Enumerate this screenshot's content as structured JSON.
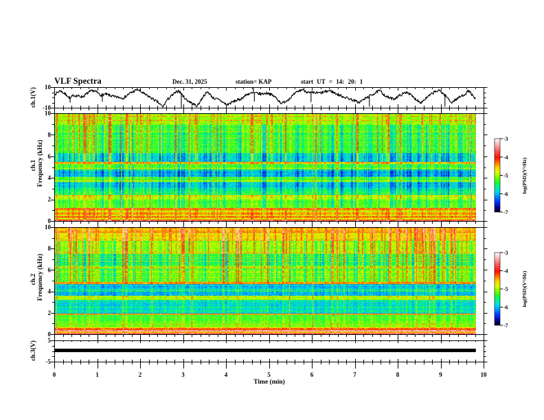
{
  "header": {
    "title": "VLF Spectra",
    "date": "Dec. 31, 2025",
    "station": "station= KAP",
    "start_time": "start UT = 14: 20: 1"
  },
  "x_axis": {
    "label": "Time (min)",
    "range": [
      0,
      10
    ],
    "ticks": [
      "0",
      "1",
      "2",
      "3",
      "4",
      "5",
      "6",
      "7",
      "8",
      "9",
      "10"
    ]
  },
  "colormap": [
    {
      "v": -7.0,
      "color": "#000014"
    },
    {
      "v": -6.75,
      "color": "#00008c"
    },
    {
      "v": -6.45,
      "color": "#0030ff"
    },
    {
      "v": -6.15,
      "color": "#0090ff"
    },
    {
      "v": -5.9,
      "color": "#00d8f0"
    },
    {
      "v": -5.65,
      "color": "#00f0a0"
    },
    {
      "v": -5.4,
      "color": "#10ff30"
    },
    {
      "v": -5.15,
      "color": "#70ff00"
    },
    {
      "v": -4.85,
      "color": "#d8ff00"
    },
    {
      "v": -4.6,
      "color": "#ffd800"
    },
    {
      "v": -4.35,
      "color": "#ff8000"
    },
    {
      "v": -4.05,
      "color": "#ff1000"
    },
    {
      "v": -3.7,
      "color": "#ff5050"
    },
    {
      "v": -3.35,
      "color": "#ffaaaa"
    },
    {
      "v": -3.0,
      "color": "#ffffff"
    }
  ],
  "chart_data": [
    {
      "type": "line",
      "ylabel": "ch.1(V)",
      "xlabel": "Time (min)",
      "ylim": [
        -10,
        10
      ],
      "yticks": [
        "10",
        "-10"
      ],
      "color": "#000000",
      "x": [
        0.02,
        0.14,
        0.29,
        0.37,
        0.45,
        0.66,
        0.82,
        0.93,
        1.09,
        1.18,
        1.41,
        1.62,
        1.73,
        1.94,
        2.1,
        2.26,
        2.42,
        2.53,
        2.62,
        2.78,
        2.9,
        3.06,
        3.22,
        3.33,
        3.49,
        3.58,
        3.7,
        3.86,
        4.02,
        4.18,
        4.34,
        4.5,
        4.66,
        4.82,
        4.98,
        5.14,
        5.3,
        5.46,
        5.66,
        5.78,
        5.94,
        6.21,
        6.42,
        6.58,
        6.74,
        6.9,
        7.1,
        7.22,
        7.38,
        7.58,
        7.74,
        7.9,
        8.06,
        8.22,
        8.38,
        8.54,
        8.7,
        8.86,
        8.98,
        9.14,
        9.25,
        9.41,
        9.57,
        9.66,
        9.78,
        9.81
      ],
      "y": [
        3.3,
        6.7,
        2.2,
        -1.0,
        2.2,
        0.6,
        5.5,
        6.7,
        2.2,
        3.3,
        0.6,
        -0.5,
        3.3,
        7.8,
        3.3,
        -0.5,
        -4.9,
        -9.4,
        -2.7,
        3.3,
        6.7,
        -1.6,
        -6.0,
        -8.3,
        2.2,
        5.5,
        -0.5,
        -2.7,
        -7.2,
        -3.8,
        -1.6,
        3.3,
        4.4,
        3.3,
        4.4,
        0.6,
        -6.0,
        -1.6,
        5.5,
        7.8,
        4.4,
        4.4,
        6.7,
        3.3,
        0.6,
        -1.6,
        -4.9,
        -1.6,
        2.2,
        6.7,
        0.6,
        -1.6,
        2.2,
        5.5,
        -0.5,
        -4.9,
        0.6,
        5.5,
        6.7,
        0.6,
        -4.9,
        -0.5,
        3.3,
        6.7,
        -0.5,
        -1.6
      ],
      "spikes": [
        {
          "t": 0.37,
          "v": -5
        },
        {
          "t": 1.12,
          "v": -4
        },
        {
          "t": 2.96,
          "v": -10
        },
        {
          "t": 4.64,
          "v": 10
        },
        {
          "t": 4.66,
          "v": -4
        },
        {
          "t": 5.98,
          "v": -4.5
        },
        {
          "t": 7.34,
          "v": -9
        },
        {
          "t": 9.1,
          "v": -9
        }
      ]
    },
    {
      "type": "heatmap",
      "channel": "ch.1",
      "ylabel": "Frequency (kHz)",
      "ylim": [
        0,
        10
      ],
      "yticks": [
        "0",
        "2",
        "4",
        "6",
        "8",
        "10"
      ],
      "time_range": [
        0,
        9.82
      ],
      "value_label": "log PSD",
      "bands": [
        {
          "f_low": 0.0,
          "f_high": 0.12,
          "log_psd": -4.0
        },
        {
          "f_low": 0.12,
          "f_high": 0.3,
          "log_psd": -4.7
        },
        {
          "f_low": 0.3,
          "f_high": 0.45,
          "log_psd": -4.2
        },
        {
          "f_low": 0.45,
          "f_high": 0.6,
          "log_psd": -4.8
        },
        {
          "f_low": 0.6,
          "f_high": 0.8,
          "log_psd": -4.4
        },
        {
          "f_low": 0.8,
          "f_high": 0.95,
          "log_psd": -4.9
        },
        {
          "f_low": 0.95,
          "f_high": 1.2,
          "log_psd": -4.5
        },
        {
          "f_low": 1.2,
          "f_high": 2.0,
          "log_psd": -5.25
        },
        {
          "f_low": 2.0,
          "f_high": 2.3,
          "log_psd": -4.95
        },
        {
          "f_low": 2.3,
          "f_high": 2.45,
          "log_psd": -5.1
        },
        {
          "f_low": 2.45,
          "f_high": 3.0,
          "log_psd": -5.55
        },
        {
          "f_low": 3.0,
          "f_high": 3.6,
          "log_psd": -5.85
        },
        {
          "f_low": 3.6,
          "f_high": 3.75,
          "log_psd": -4.9
        },
        {
          "f_low": 3.75,
          "f_high": 4.1,
          "log_psd": -5.2
        },
        {
          "f_low": 4.1,
          "f_high": 4.8,
          "log_psd": -6.0
        },
        {
          "f_low": 4.8,
          "f_high": 5.3,
          "log_psd": -5.25
        },
        {
          "f_low": 5.3,
          "f_high": 5.5,
          "log_psd": -4.45
        },
        {
          "f_low": 5.5,
          "f_high": 6.3,
          "log_psd": -5.8
        },
        {
          "f_low": 6.3,
          "f_high": 8.9,
          "log_psd": -5.3
        },
        {
          "f_low": 8.9,
          "f_high": 10.0,
          "log_psd": -5.0
        }
      ],
      "colorbar": {
        "label": "log(PSD)(V²/Hz)",
        "range": [
          -7,
          -3
        ],
        "ticks": [
          "-3",
          "-4",
          "-5",
          "-6",
          "-7"
        ]
      }
    },
    {
      "type": "heatmap",
      "channel": "ch.2",
      "ylabel": "Frequency (kHz)",
      "ylim": [
        0,
        10
      ],
      "yticks": [
        "0",
        "2",
        "4",
        "6",
        "8",
        "10"
      ],
      "time_range": [
        0,
        9.82
      ],
      "value_label": "log PSD",
      "bands": [
        {
          "f_low": 0.0,
          "f_high": 0.12,
          "log_psd": -3.8
        },
        {
          "f_low": 0.12,
          "f_high": 0.25,
          "log_psd": -4.6
        },
        {
          "f_low": 0.25,
          "f_high": 0.4,
          "log_psd": -3.4
        },
        {
          "f_low": 0.4,
          "f_high": 0.55,
          "log_psd": -4.2
        },
        {
          "f_low": 0.55,
          "f_high": 0.7,
          "log_psd": -4.7
        },
        {
          "f_low": 0.7,
          "f_high": 1.8,
          "log_psd": -5.25
        },
        {
          "f_low": 1.8,
          "f_high": 1.95,
          "log_psd": -4.5
        },
        {
          "f_low": 1.95,
          "f_high": 3.2,
          "log_psd": -5.85
        },
        {
          "f_low": 3.2,
          "f_high": 3.6,
          "log_psd": -5.05
        },
        {
          "f_low": 3.6,
          "f_high": 4.7,
          "log_psd": -5.95
        },
        {
          "f_low": 4.7,
          "f_high": 4.9,
          "log_psd": -4.4
        },
        {
          "f_low": 4.9,
          "f_high": 6.4,
          "log_psd": -5.15
        },
        {
          "f_low": 6.4,
          "f_high": 7.5,
          "log_psd": -5.45
        },
        {
          "f_low": 7.5,
          "f_high": 8.7,
          "log_psd": -4.95
        },
        {
          "f_low": 8.7,
          "f_high": 10.0,
          "log_psd": -4.6
        }
      ],
      "colorbar": {
        "label": "log(PSD)(V²/Hz)",
        "range": [
          -7,
          -3
        ],
        "ticks": [
          "-3",
          "-4",
          "-5",
          "-6",
          "-7"
        ]
      }
    },
    {
      "type": "line",
      "ylabel": "ch.3(V)",
      "xlabel": "Time (min)",
      "ylim": [
        -5,
        5
      ],
      "yticks": [
        "5",
        "-5"
      ],
      "color": "#000000",
      "time_range": [
        0,
        9.82
      ],
      "mean_v": 0.3,
      "min_v": -0.5,
      "max_v": 1.1
    }
  ]
}
